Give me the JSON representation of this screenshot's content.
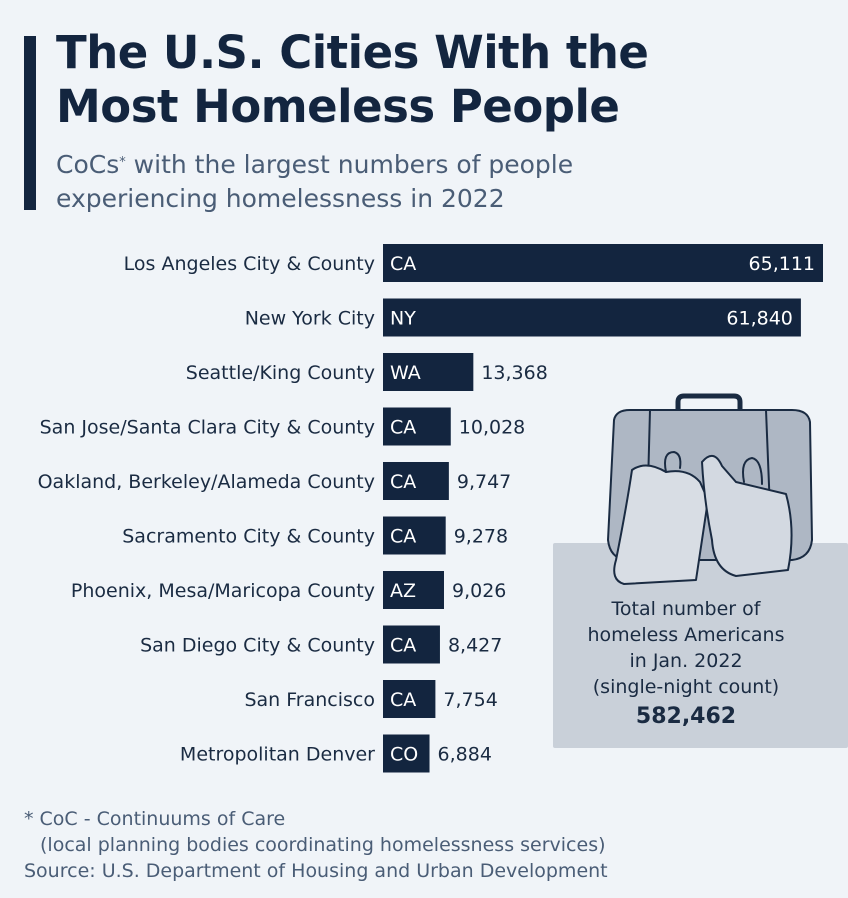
{
  "header": {
    "title_line1": "The U.S. Cities With the",
    "title_line2": "Most Homeless People",
    "subtitle_part1": "CoCs",
    "subtitle_asterisk": "*",
    "subtitle_part2": " with the largest numbers of people",
    "subtitle_line2": "experiencing homelessness in 2022"
  },
  "chart_data": {
    "type": "bar",
    "orientation": "horizontal",
    "title": "The U.S. Cities With the Most Homeless People",
    "subtitle": "CoCs* with the largest numbers of people experiencing homelessness in 2022",
    "categories": [
      "Los Angeles City & County",
      "New York City",
      "Seattle/King County",
      "San Jose/Santa Clara City & County",
      "Oakland, Berkeley/Alameda County",
      "Sacramento City & County",
      "Phoenix, Mesa/Maricopa County",
      "San Diego City & County",
      "San Francisco",
      "Metropolitan Denver"
    ],
    "states": [
      "CA",
      "NY",
      "WA",
      "CA",
      "CA",
      "CA",
      "AZ",
      "CA",
      "CA",
      "CO"
    ],
    "values": [
      65111,
      61840,
      13368,
      10028,
      9747,
      9278,
      9026,
      8427,
      7754,
      6884
    ],
    "value_labels": [
      "65,111",
      "61,840",
      "13,368",
      "10,028",
      "9,747",
      "9,278",
      "9,026",
      "8,427",
      "7,754",
      "6,884"
    ],
    "xlim": [
      0,
      65111
    ],
    "grid": false,
    "bar_color": "#13253f"
  },
  "info_box": {
    "line1": "Total number of",
    "line2": "homeless Americans",
    "line3": "in Jan. 2022",
    "line4": "(single-night count)",
    "total": "582,462",
    "icon": "bag-icon"
  },
  "footer": {
    "note_line1": "* CoC - Continuums of Care",
    "note_line2": "(local planning bodies coordinating homelessness services)",
    "source": "Source: U.S. Department of Housing and Urban Development"
  }
}
